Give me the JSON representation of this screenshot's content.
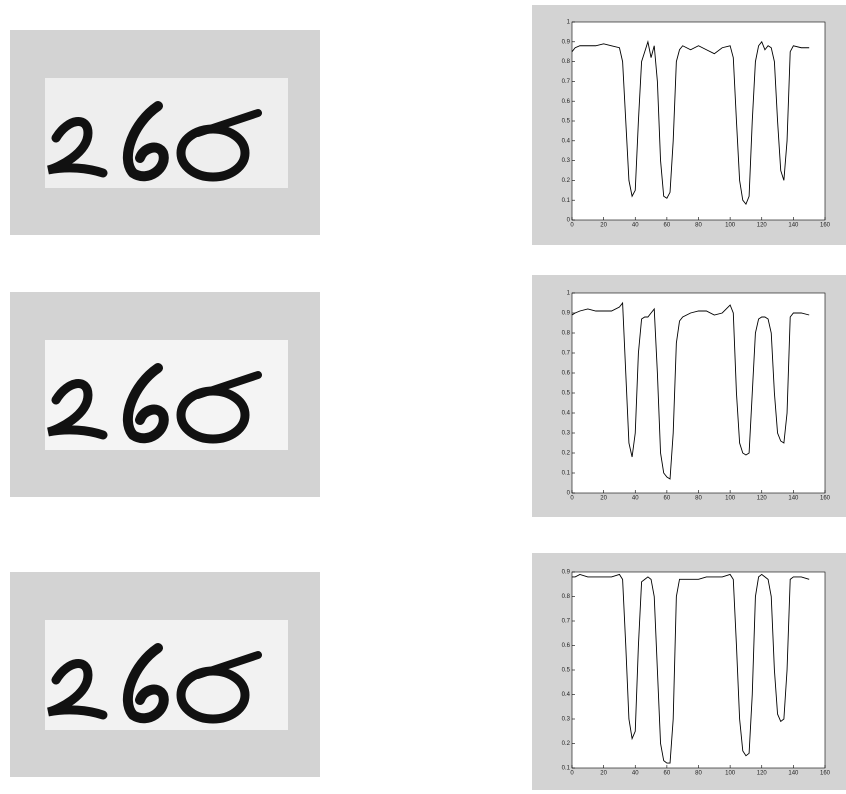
{
  "chart_data": [
    {
      "type": "line",
      "color": "#000000",
      "x": [
        0,
        2,
        5,
        10,
        15,
        20,
        25,
        30,
        32,
        34,
        36,
        38,
        40,
        42,
        44,
        46,
        48,
        50,
        52,
        54,
        56,
        58,
        60,
        62,
        64,
        66,
        68,
        70,
        75,
        80,
        85,
        90,
        95,
        100,
        102,
        104,
        106,
        108,
        110,
        112,
        114,
        116,
        118,
        120,
        122,
        124,
        126,
        128,
        130,
        132,
        134,
        136,
        138,
        140,
        145,
        150
      ],
      "values": [
        0.85,
        0.87,
        0.88,
        0.88,
        0.88,
        0.89,
        0.88,
        0.87,
        0.8,
        0.5,
        0.2,
        0.12,
        0.15,
        0.5,
        0.8,
        0.85,
        0.9,
        0.82,
        0.88,
        0.7,
        0.3,
        0.12,
        0.11,
        0.14,
        0.4,
        0.8,
        0.86,
        0.88,
        0.86,
        0.88,
        0.86,
        0.84,
        0.87,
        0.88,
        0.82,
        0.5,
        0.2,
        0.1,
        0.08,
        0.12,
        0.5,
        0.8,
        0.88,
        0.9,
        0.86,
        0.88,
        0.87,
        0.8,
        0.5,
        0.25,
        0.2,
        0.4,
        0.85,
        0.88,
        0.87,
        0.87
      ],
      "xlim": [
        0,
        160
      ],
      "ylim": [
        0,
        1
      ],
      "xticks": [
        0,
        20,
        40,
        60,
        80,
        100,
        120,
        140,
        160
      ],
      "yticks": [
        0,
        0.1,
        0.2,
        0.3,
        0.4,
        0.5,
        0.6,
        0.7,
        0.8,
        0.9,
        1
      ]
    },
    {
      "type": "line",
      "color": "#000000",
      "x": [
        0,
        2,
        5,
        10,
        15,
        20,
        25,
        30,
        32,
        34,
        36,
        38,
        40,
        42,
        44,
        46,
        48,
        50,
        52,
        54,
        56,
        58,
        60,
        62,
        64,
        66,
        68,
        70,
        75,
        80,
        85,
        90,
        95,
        100,
        102,
        104,
        106,
        108,
        110,
        112,
        114,
        116,
        118,
        120,
        122,
        124,
        126,
        128,
        130,
        132,
        134,
        136,
        138,
        140,
        145,
        150
      ],
      "values": [
        0.89,
        0.9,
        0.91,
        0.92,
        0.91,
        0.91,
        0.91,
        0.93,
        0.95,
        0.6,
        0.25,
        0.18,
        0.3,
        0.7,
        0.87,
        0.88,
        0.88,
        0.9,
        0.92,
        0.6,
        0.2,
        0.1,
        0.08,
        0.07,
        0.3,
        0.75,
        0.86,
        0.88,
        0.9,
        0.91,
        0.91,
        0.89,
        0.9,
        0.94,
        0.9,
        0.5,
        0.25,
        0.2,
        0.19,
        0.2,
        0.5,
        0.8,
        0.87,
        0.88,
        0.88,
        0.87,
        0.8,
        0.5,
        0.3,
        0.26,
        0.25,
        0.4,
        0.88,
        0.9,
        0.9,
        0.89
      ],
      "xlim": [
        0,
        160
      ],
      "ylim": [
        0,
        1
      ],
      "xticks": [
        0,
        20,
        40,
        60,
        80,
        100,
        120,
        140,
        160
      ],
      "yticks": [
        0,
        0.1,
        0.2,
        0.3,
        0.4,
        0.5,
        0.6,
        0.7,
        0.8,
        0.9,
        1
      ]
    },
    {
      "type": "line",
      "color": "#000000",
      "x": [
        0,
        2,
        5,
        10,
        15,
        20,
        25,
        30,
        32,
        34,
        36,
        38,
        40,
        42,
        44,
        46,
        48,
        50,
        52,
        54,
        56,
        58,
        60,
        62,
        64,
        66,
        68,
        70,
        75,
        80,
        85,
        90,
        95,
        100,
        102,
        104,
        106,
        108,
        110,
        112,
        114,
        116,
        118,
        120,
        122,
        124,
        126,
        128,
        130,
        132,
        134,
        136,
        138,
        140,
        145,
        150
      ],
      "values": [
        0.88,
        0.88,
        0.89,
        0.88,
        0.88,
        0.88,
        0.88,
        0.89,
        0.87,
        0.6,
        0.3,
        0.22,
        0.25,
        0.6,
        0.86,
        0.87,
        0.88,
        0.87,
        0.8,
        0.5,
        0.2,
        0.13,
        0.12,
        0.12,
        0.3,
        0.8,
        0.87,
        0.87,
        0.87,
        0.87,
        0.88,
        0.88,
        0.88,
        0.89,
        0.87,
        0.6,
        0.3,
        0.17,
        0.15,
        0.16,
        0.4,
        0.8,
        0.88,
        0.89,
        0.88,
        0.87,
        0.8,
        0.5,
        0.32,
        0.29,
        0.3,
        0.5,
        0.87,
        0.88,
        0.88,
        0.87
      ],
      "xlim": [
        0,
        160
      ],
      "ylim": [
        0.1,
        0.9
      ],
      "xticks": [
        0,
        20,
        40,
        60,
        80,
        100,
        120,
        140,
        160
      ],
      "yticks": [
        0.1,
        0.2,
        0.3,
        0.4,
        0.5,
        0.6,
        0.7,
        0.8,
        0.9
      ]
    }
  ]
}
